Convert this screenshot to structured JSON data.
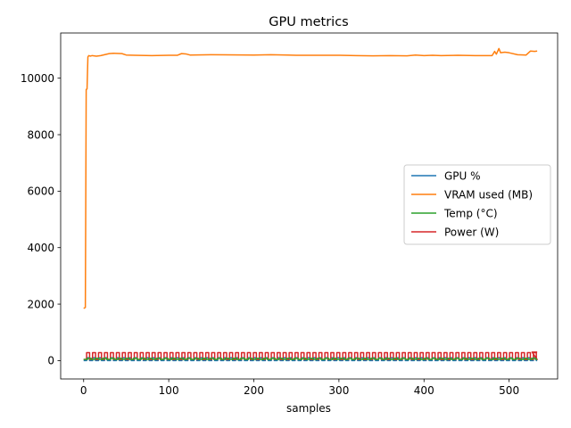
{
  "chart_data": {
    "type": "line",
    "title": "GPU metrics",
    "xlabel": "samples",
    "ylabel": "",
    "xlim": [
      -27,
      557
    ],
    "ylim": [
      -650,
      11600
    ],
    "xticks": [
      0,
      100,
      200,
      300,
      400,
      500
    ],
    "yticks": [
      0,
      2000,
      4000,
      6000,
      8000,
      10000
    ],
    "grid": false,
    "legend_position": "center-right",
    "series": [
      {
        "name": "GPU %",
        "color": "#1f77b4",
        "pattern": "square-wave",
        "x": [
          0,
          533
        ],
        "low": 0,
        "high": 100,
        "period": 7
      },
      {
        "name": "VRAM used (MB)",
        "color": "#ff7f0e",
        "x": [
          0,
          2,
          3,
          4,
          5,
          6,
          8,
          10,
          15,
          20,
          30,
          35,
          45,
          50,
          60,
          80,
          100,
          110,
          115,
          120,
          125,
          150,
          200,
          220,
          240,
          250,
          300,
          320,
          340,
          360,
          380,
          390,
          400,
          410,
          420,
          440,
          460,
          480,
          483,
          485,
          488,
          490,
          495,
          500,
          510,
          520,
          525,
          530,
          533
        ],
        "y": [
          1850,
          1880,
          9600,
          9620,
          10750,
          10800,
          10780,
          10800,
          10780,
          10800,
          10870,
          10880,
          10870,
          10820,
          10810,
          10800,
          10810,
          10810,
          10870,
          10860,
          10820,
          10830,
          10820,
          10830,
          10820,
          10810,
          10810,
          10800,
          10790,
          10800,
          10790,
          10820,
          10800,
          10810,
          10800,
          10810,
          10800,
          10800,
          10950,
          10850,
          11050,
          10900,
          10920,
          10900,
          10830,
          10820,
          10960,
          10950,
          10960
        ]
      },
      {
        "name": "Temp (°C)",
        "color": "#2ca02c",
        "pattern": "square-wave",
        "x": [
          0,
          533
        ],
        "low": 40,
        "high": 80,
        "period": 9
      },
      {
        "name": "Power (W)",
        "color": "#d62728",
        "pattern": "square-wave",
        "x": [
          0,
          533
        ],
        "low": 40,
        "high": 280,
        "period": 7,
        "end_high": 300
      }
    ]
  }
}
